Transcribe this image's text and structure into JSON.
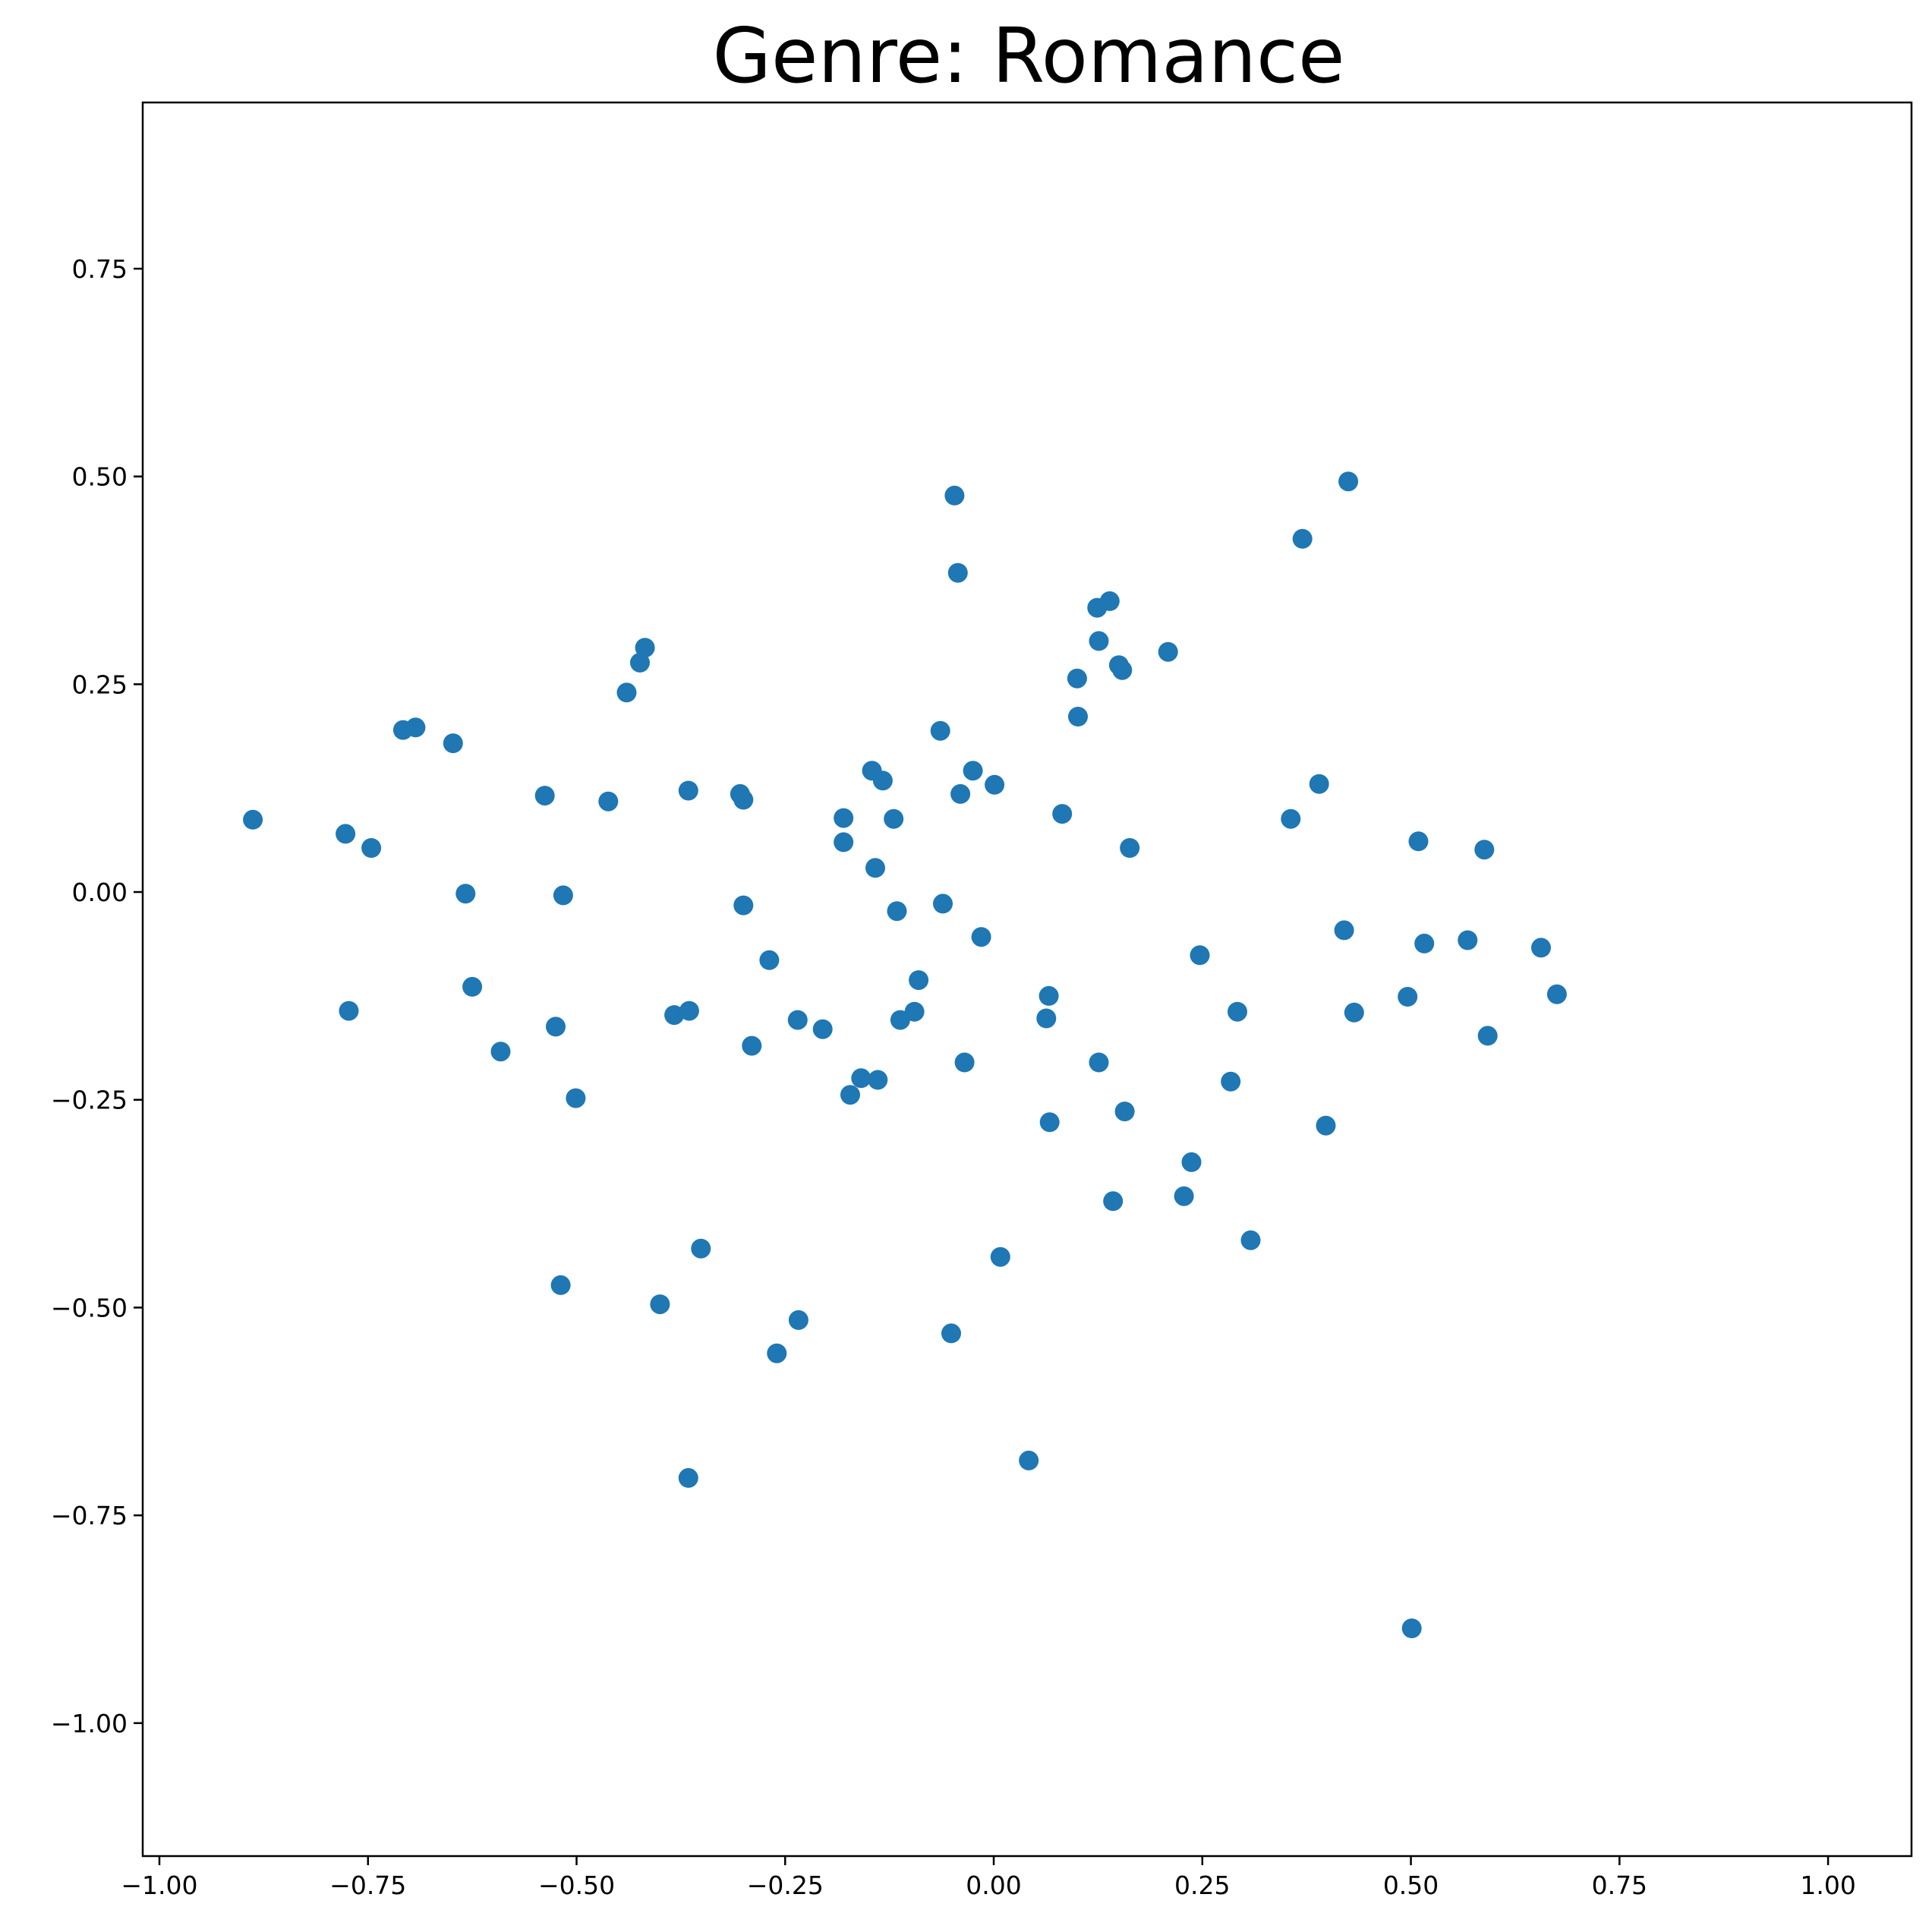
{
  "chart_data": {
    "type": "scatter",
    "title": "Genre: Romance",
    "xlabel": "",
    "ylabel": "",
    "xlim": [
      -1.02,
      1.1
    ],
    "ylim": [
      -1.16,
      0.95
    ],
    "xticks": [
      -1.0,
      -0.75,
      -0.5,
      -0.25,
      0.0,
      0.25,
      0.5,
      0.75,
      1.0
    ],
    "yticks": [
      0.75,
      0.5,
      0.25,
      0.0,
      -0.25,
      -0.5,
      -0.75,
      -1.0
    ],
    "xtick_labels": [
      "−1.00",
      "−0.75",
      "−0.50",
      "−0.25",
      "0.00",
      "0.25",
      "0.50",
      "0.75",
      "1.00"
    ],
    "ytick_labels": [
      "0.75",
      "0.50",
      "0.25",
      "0.00",
      "−0.25",
      "−0.50",
      "−0.75",
      "−1.00"
    ],
    "grid": false,
    "marker_color": "#1f77b4",
    "points": [
      {
        "x": -0.888,
        "y": 0.087
      },
      {
        "x": -0.777,
        "y": 0.07
      },
      {
        "x": -0.746,
        "y": 0.053
      },
      {
        "x": -0.773,
        "y": -0.143
      },
      {
        "x": -0.708,
        "y": 0.195
      },
      {
        "x": -0.693,
        "y": 0.198
      },
      {
        "x": -0.648,
        "y": 0.179
      },
      {
        "x": -0.633,
        "y": -0.002
      },
      {
        "x": -0.625,
        "y": -0.114
      },
      {
        "x": -0.591,
        "y": -0.192
      },
      {
        "x": -0.538,
        "y": 0.116
      },
      {
        "x": -0.525,
        "y": -0.162
      },
      {
        "x": -0.516,
        "y": -0.004
      },
      {
        "x": -0.501,
        "y": -0.248
      },
      {
        "x": -0.519,
        "y": -0.473
      },
      {
        "x": -0.462,
        "y": 0.109
      },
      {
        "x": -0.44,
        "y": 0.24
      },
      {
        "x": -0.424,
        "y": 0.276
      },
      {
        "x": -0.418,
        "y": 0.294
      },
      {
        "x": -0.4,
        "y": -0.496
      },
      {
        "x": -0.366,
        "y": 0.122
      },
      {
        "x": -0.383,
        "y": -0.148
      },
      {
        "x": -0.365,
        "y": -0.143
      },
      {
        "x": -0.351,
        "y": -0.429
      },
      {
        "x": -0.366,
        "y": -0.705
      },
      {
        "x": -0.304,
        "y": 0.118
      },
      {
        "x": -0.3,
        "y": 0.111
      },
      {
        "x": -0.3,
        "y": -0.016
      },
      {
        "x": -0.29,
        "y": -0.185
      },
      {
        "x": -0.269,
        "y": -0.082
      },
      {
        "x": -0.235,
        "y": -0.154
      },
      {
        "x": -0.234,
        "y": -0.515
      },
      {
        "x": -0.26,
        "y": -0.555
      },
      {
        "x": -0.205,
        "y": -0.165
      },
      {
        "x": -0.18,
        "y": 0.089
      },
      {
        "x": -0.18,
        "y": 0.06
      },
      {
        "x": -0.172,
        "y": -0.244
      },
      {
        "x": -0.159,
        "y": -0.224
      },
      {
        "x": -0.146,
        "y": 0.146
      },
      {
        "x": -0.133,
        "y": 0.134
      },
      {
        "x": -0.142,
        "y": 0.029
      },
      {
        "x": -0.12,
        "y": 0.088
      },
      {
        "x": -0.116,
        "y": -0.023
      },
      {
        "x": -0.112,
        "y": -0.154
      },
      {
        "x": -0.139,
        "y": -0.226
      },
      {
        "x": -0.095,
        "y": -0.144
      },
      {
        "x": -0.09,
        "y": -0.106
      },
      {
        "x": -0.064,
        "y": 0.194
      },
      {
        "x": -0.061,
        "y": -0.014
      },
      {
        "x": -0.047,
        "y": 0.477
      },
      {
        "x": -0.043,
        "y": 0.384
      },
      {
        "x": -0.04,
        "y": 0.118
      },
      {
        "x": -0.025,
        "y": 0.146
      },
      {
        "x": -0.015,
        "y": -0.054
      },
      {
        "x": -0.035,
        "y": -0.205
      },
      {
        "x": -0.051,
        "y": -0.531
      },
      {
        "x": 0.001,
        "y": 0.129
      },
      {
        "x": 0.008,
        "y": -0.439
      },
      {
        "x": 0.042,
        "y": -0.684
      },
      {
        "x": 0.066,
        "y": -0.125
      },
      {
        "x": 0.063,
        "y": -0.152
      },
      {
        "x": 0.067,
        "y": -0.277
      },
      {
        "x": 0.082,
        "y": 0.094
      },
      {
        "x": 0.1,
        "y": 0.257
      },
      {
        "x": 0.101,
        "y": 0.211
      },
      {
        "x": 0.124,
        "y": 0.342
      },
      {
        "x": 0.126,
        "y": 0.302
      },
      {
        "x": 0.139,
        "y": 0.35
      },
      {
        "x": 0.15,
        "y": 0.273
      },
      {
        "x": 0.154,
        "y": 0.267
      },
      {
        "x": 0.163,
        "y": 0.053
      },
      {
        "x": 0.126,
        "y": -0.205
      },
      {
        "x": 0.157,
        "y": -0.264
      },
      {
        "x": 0.143,
        "y": -0.372
      },
      {
        "x": 0.209,
        "y": 0.289
      },
      {
        "x": 0.247,
        "y": -0.076
      },
      {
        "x": 0.237,
        "y": -0.325
      },
      {
        "x": 0.228,
        "y": -0.366
      },
      {
        "x": 0.284,
        "y": -0.228
      },
      {
        "x": 0.292,
        "y": -0.144
      },
      {
        "x": 0.308,
        "y": -0.419
      },
      {
        "x": 0.356,
        "y": 0.088
      },
      {
        "x": 0.37,
        "y": 0.425
      },
      {
        "x": 0.39,
        "y": 0.13
      },
      {
        "x": 0.42,
        "y": -0.046
      },
      {
        "x": 0.432,
        "y": -0.145
      },
      {
        "x": 0.425,
        "y": 0.494
      },
      {
        "x": 0.398,
        "y": -0.281
      },
      {
        "x": 0.509,
        "y": 0.061
      },
      {
        "x": 0.516,
        "y": -0.062
      },
      {
        "x": 0.496,
        "y": -0.126
      },
      {
        "x": 0.568,
        "y": -0.058
      },
      {
        "x": 0.588,
        "y": 0.051
      },
      {
        "x": 0.592,
        "y": -0.173
      },
      {
        "x": 0.656,
        "y": -0.067
      },
      {
        "x": 0.675,
        "y": -0.123
      },
      {
        "x": 0.501,
        "y": -0.886
      }
    ]
  }
}
